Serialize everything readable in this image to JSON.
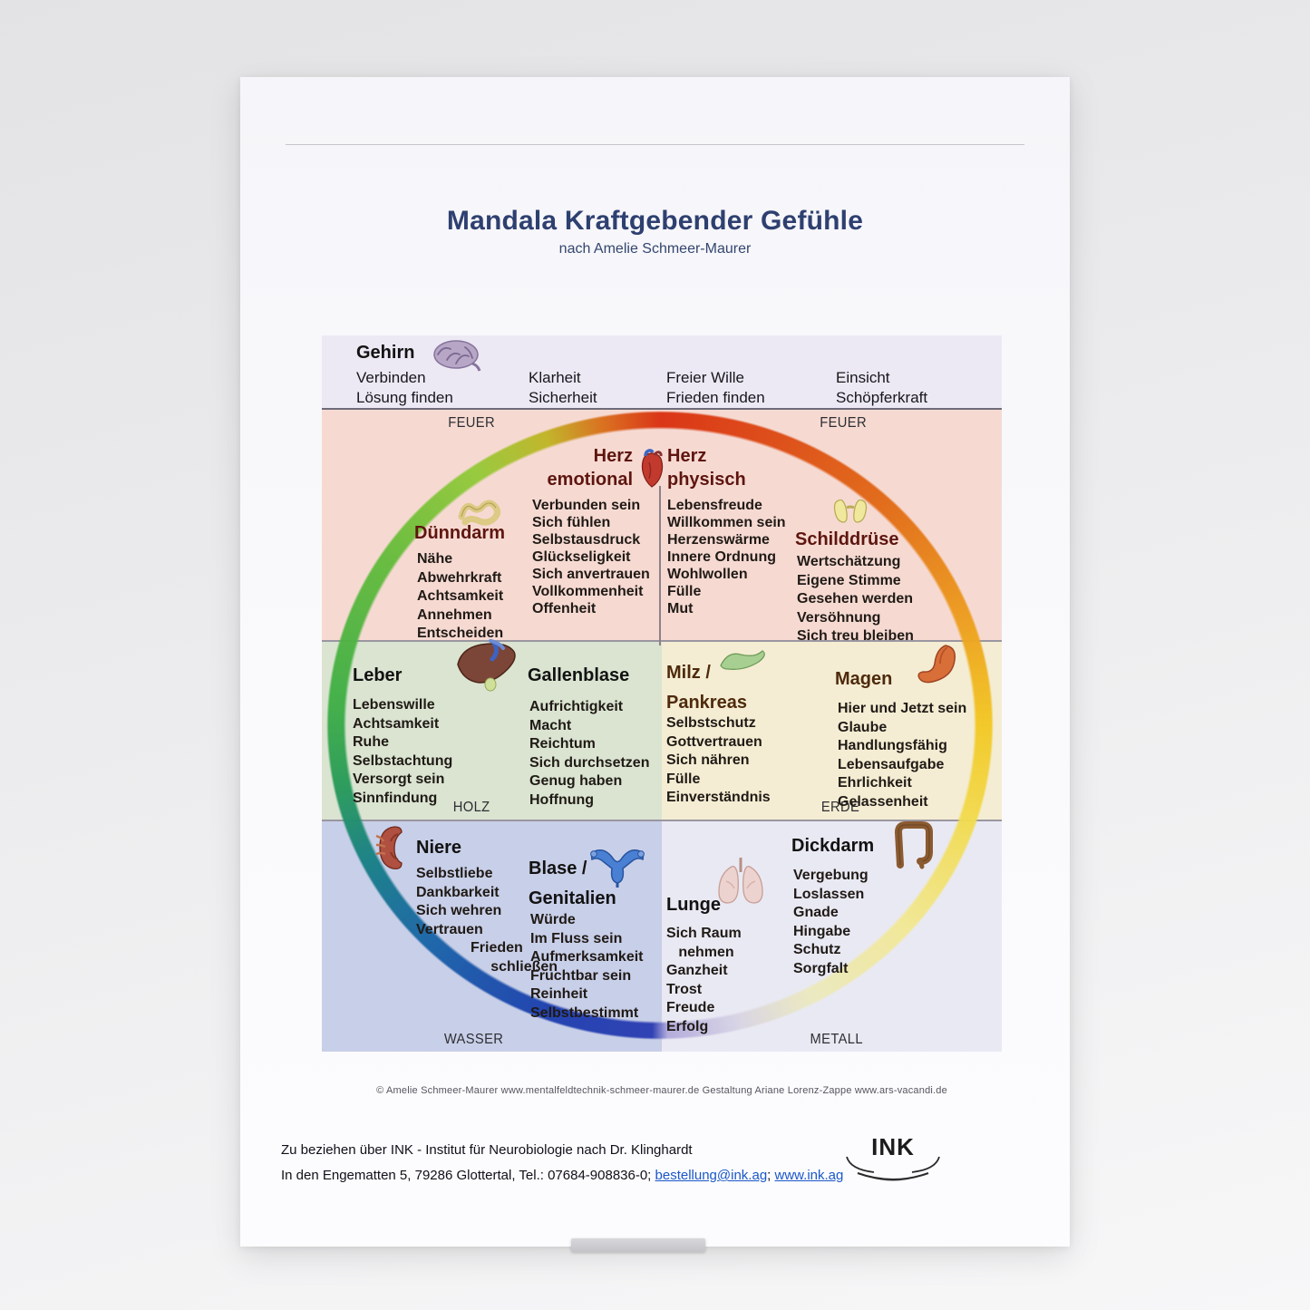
{
  "page": {
    "title": "Mandala Kraftgebender Gefühle",
    "subtitle": "nach Amelie Schmeer-Maurer"
  },
  "colors": {
    "title": "#2e4070",
    "gehirn_bg": "#ece9f4",
    "feuer_bg": "#f6dad2",
    "holz_bg": "#dae4d1",
    "erde_bg": "#f4edd3",
    "wasser_bg": "#c8cfe8",
    "metall_bg": "#e9e9f3",
    "ring_red": "#d93010",
    "ring_yellow": "#f0cf28",
    "ring_green": "#3fae46",
    "ring_blue": "#2438b0"
  },
  "elements": {
    "feuer_left": "FEUER",
    "feuer_right": "FEUER",
    "holz": "HOLZ",
    "erde": "ERDE",
    "wasser": "WASSER",
    "metall": "METALL"
  },
  "gehirn": {
    "label": "Gehirn",
    "columns": [
      "Verbinden\nLösung finden",
      "Klarheit\nSicherheit",
      "Freier Wille\nFrieden finden",
      "Einsicht\nSchöpferkraft"
    ]
  },
  "sections": {
    "herz_emotional": {
      "title": "Herz\nemotional",
      "items": [
        "Verbunden sein",
        "Sich fühlen",
        "Selbstausdruck",
        "Glückseligkeit",
        "Sich anvertrauen",
        "Vollkommenheit",
        "Offenheit"
      ]
    },
    "herz_physisch": {
      "title": "Herz\nphysisch",
      "items": [
        "Lebensfreude",
        "Willkommen sein",
        "Herzenswärme",
        "Innere Ordnung",
        "Wohlwollen",
        "Fülle",
        "Mut"
      ]
    },
    "duenndarm": {
      "title": "Dünndarm",
      "items": [
        "Nähe",
        "Abwehrkraft",
        "Achtsamkeit",
        "Annehmen",
        "Entscheiden"
      ]
    },
    "schilddruese": {
      "title": "Schilddrüse",
      "items": [
        "Wertschätzung",
        "Eigene Stimme",
        "Gesehen werden",
        "Versöhnung",
        "Sich treu bleiben"
      ]
    },
    "leber": {
      "title": "Leber",
      "items": [
        "Lebenswille",
        "Achtsamkeit",
        "Ruhe",
        "Selbstachtung",
        "Versorgt sein",
        "Sinnfindung"
      ]
    },
    "gallenblase": {
      "title": "Gallenblase",
      "items": [
        "Aufrichtigkeit",
        "Macht",
        "Reichtum",
        "Sich durchsetzen",
        "Genug haben",
        "Hoffnung"
      ]
    },
    "milz_pankreas": {
      "title": "Milz /\nPankreas",
      "items": [
        "Selbstschutz",
        "Gottvertrauen",
        "Sich nähren",
        "Fülle",
        "Einverständnis"
      ]
    },
    "magen": {
      "title": "Magen",
      "items": [
        "Hier und Jetzt sein",
        "Glaube",
        "Handlungsfähig",
        "Lebensaufgabe",
        "Ehrlichkeit",
        "Gelassenheit"
      ]
    },
    "niere": {
      "title": "Niere",
      "items": [
        "Selbstliebe",
        "Dankbarkeit",
        "Sich wehren",
        "Vertrauen",
        {
          "text": "Frieden\n     schließen",
          "indent": 60
        }
      ]
    },
    "blase_genitalien": {
      "title": "Blase /\nGenitalien",
      "items": [
        "Würde",
        "Im Fluss sein",
        "Aufmerksamkeit",
        "Fruchtbar sein",
        "Reinheit",
        "Selbstbestimmt"
      ]
    },
    "lunge": {
      "title": "Lunge",
      "items": [
        {
          "text": "Sich Raum\n   nehmen"
        },
        "Ganzheit",
        "Trost",
        "Freude",
        "Erfolg"
      ]
    },
    "dickdarm": {
      "title": "Dickdarm",
      "items": [
        "Vergebung",
        "Loslassen",
        "Gnade",
        "Hingabe",
        "Schutz",
        "Sorgfalt"
      ]
    }
  },
  "credits": {
    "copyright": "© Amelie Schmeer-Maurer   www.mentalfeldtechnik-schmeer-maurer.de   Gestaltung Ariane Lorenz-Zappe  www.ars-vacandi.de"
  },
  "footer": {
    "line1": "Zu beziehen über INK - Institut für Neurobiologie nach Dr. Klinghardt",
    "line2_prefix": "In den Engematten 5, 79286 Glottertal, Tel.: 07684-908836-0; ",
    "link_email": "bestellung@ink.ag",
    "separator": "; ",
    "link_web": "www.ink.ag"
  },
  "logo": {
    "text": "INK"
  }
}
